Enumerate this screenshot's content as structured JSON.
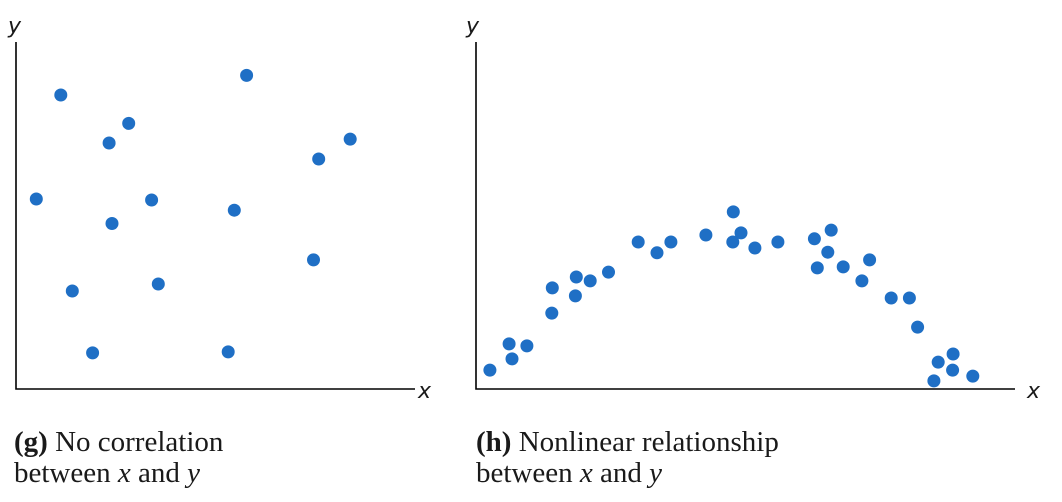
{
  "colors": {
    "point": "#1f6fc5",
    "axis": "#000000",
    "text": "#1a1a1a"
  },
  "chart_data": [
    {
      "type": "scatter",
      "title": "",
      "xlabel": "x",
      "ylabel": "y",
      "xlim": [
        0,
        100
      ],
      "ylim": [
        0,
        100
      ],
      "grid": false,
      "caption": {
        "tag": "(g)",
        "line1": "No correlation",
        "line2_prefix": "between",
        "var1": "x",
        "connector": "and",
        "var2": "y"
      },
      "points": [
        {
          "x": 6.3,
          "y": 54.3
        },
        {
          "x": 13.9,
          "y": 84.0
        },
        {
          "x": 17.5,
          "y": 28.0
        },
        {
          "x": 23.8,
          "y": 10.3
        },
        {
          "x": 28.9,
          "y": 70.3
        },
        {
          "x": 29.8,
          "y": 47.3
        },
        {
          "x": 35.0,
          "y": 75.9
        },
        {
          "x": 42.1,
          "y": 54.0
        },
        {
          "x": 44.2,
          "y": 30.0
        },
        {
          "x": 65.9,
          "y": 10.6
        },
        {
          "x": 67.8,
          "y": 51.1
        },
        {
          "x": 71.6,
          "y": 89.6
        },
        {
          "x": 92.4,
          "y": 36.9
        },
        {
          "x": 94.0,
          "y": 65.7
        },
        {
          "x": 103.8,
          "y": 71.4
        }
      ]
    },
    {
      "type": "scatter",
      "title": "",
      "xlabel": "x",
      "ylabel": "y",
      "xlim": [
        0,
        100
      ],
      "ylim": [
        0,
        100
      ],
      "grid": false,
      "caption": {
        "tag": "(h)",
        "line1": "Nonlinear relationship",
        "line2_prefix": "between",
        "var1": "x",
        "connector": "and",
        "var2": "y"
      },
      "points": [
        {
          "x": 2.9,
          "y": 5.4
        },
        {
          "x": 6.9,
          "y": 12.9
        },
        {
          "x": 7.5,
          "y": 8.6
        },
        {
          "x": 10.6,
          "y": 12.3
        },
        {
          "x": 15.8,
          "y": 21.7
        },
        {
          "x": 15.9,
          "y": 28.9
        },
        {
          "x": 20.7,
          "y": 26.6
        },
        {
          "x": 20.9,
          "y": 32.0
        },
        {
          "x": 23.8,
          "y": 30.9
        },
        {
          "x": 27.6,
          "y": 33.4
        },
        {
          "x": 33.8,
          "y": 42.0
        },
        {
          "x": 37.7,
          "y": 38.9
        },
        {
          "x": 40.6,
          "y": 42.0
        },
        {
          "x": 47.9,
          "y": 44.0
        },
        {
          "x": 53.5,
          "y": 42.0
        },
        {
          "x": 53.6,
          "y": 50.6
        },
        {
          "x": 55.2,
          "y": 44.6
        },
        {
          "x": 58.1,
          "y": 40.3
        },
        {
          "x": 62.9,
          "y": 42.0
        },
        {
          "x": 70.5,
          "y": 42.9
        },
        {
          "x": 71.1,
          "y": 34.6
        },
        {
          "x": 73.3,
          "y": 39.1
        },
        {
          "x": 74.0,
          "y": 45.4
        },
        {
          "x": 76.5,
          "y": 34.9
        },
        {
          "x": 80.4,
          "y": 30.9
        },
        {
          "x": 82.0,
          "y": 36.9
        },
        {
          "x": 86.5,
          "y": 26.0
        },
        {
          "x": 90.3,
          "y": 26.0
        },
        {
          "x": 92.0,
          "y": 17.7
        },
        {
          "x": 95.4,
          "y": 2.3
        },
        {
          "x": 96.3,
          "y": 7.7
        },
        {
          "x": 99.3,
          "y": 5.4
        },
        {
          "x": 99.4,
          "y": 10.0
        },
        {
          "x": 103.5,
          "y": 3.7
        }
      ]
    }
  ]
}
